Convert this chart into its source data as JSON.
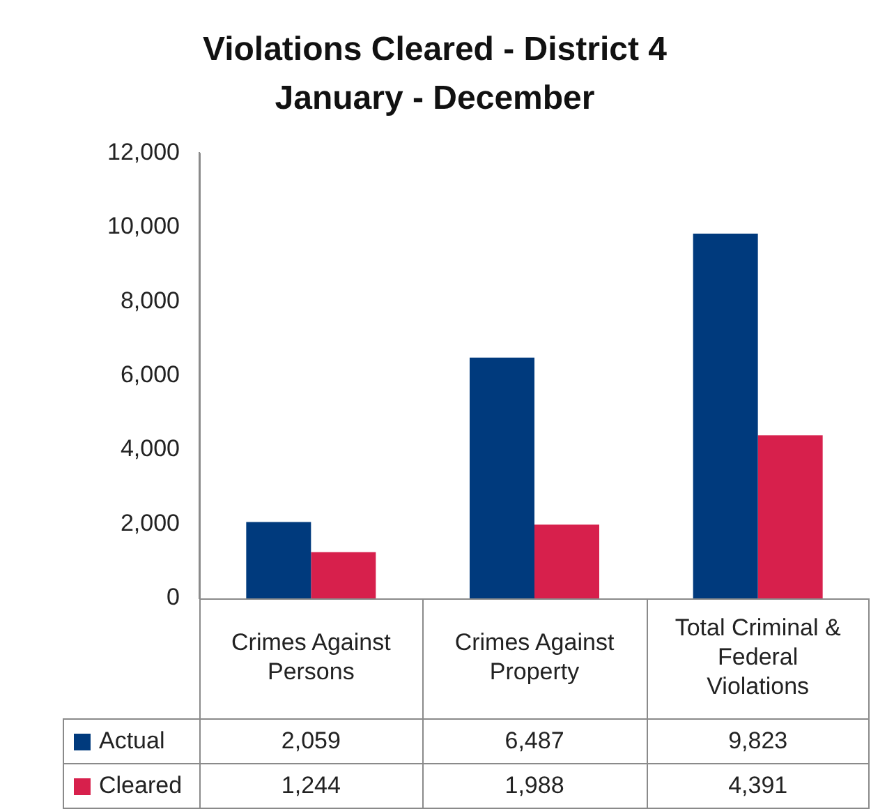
{
  "chart_data": {
    "type": "bar",
    "title": "Violations Cleared - District 4",
    "subtitle": "January - December",
    "categories": [
      "Crimes Against Persons",
      "Crimes Against Property",
      "Total Criminal & Federal Violations"
    ],
    "series": [
      {
        "name": "Actual",
        "color": "#003a7d",
        "values": [
          2059,
          6487,
          9823
        ],
        "value_labels": [
          "2,059",
          "6,487",
          "9,823"
        ]
      },
      {
        "name": "Cleared",
        "color": "#d7204c",
        "values": [
          1244,
          1988,
          4391
        ],
        "value_labels": [
          "1,244",
          "1,988",
          "4,391"
        ]
      }
    ],
    "ylim": [
      0,
      12000
    ],
    "yticks": [
      {
        "value": 0,
        "label": "0"
      },
      {
        "value": 2000,
        "label": "2,000"
      },
      {
        "value": 4000,
        "label": "4,000"
      },
      {
        "value": 6000,
        "label": "6,000"
      },
      {
        "value": 8000,
        "label": "8,000"
      },
      {
        "value": 10000,
        "label": "10,000"
      },
      {
        "value": 12000,
        "label": "12,000"
      }
    ],
    "legend": "bottom"
  }
}
